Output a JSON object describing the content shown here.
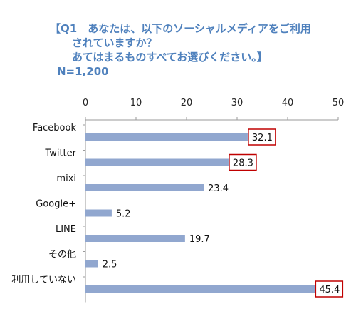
{
  "title_lines": [
    "【Q1　あなたは、以下のソーシャルメディアをご利用",
    "されていますか？",
    "あてはまるものすべてお選びください。】"
  ],
  "sample_size": "N=1,200",
  "chart_data": {
    "type": "bar",
    "orientation": "horizontal",
    "categories": [
      "Facebook",
      "Twitter",
      "mixi",
      "Google+",
      "LINE",
      "その他",
      "利用していない"
    ],
    "values": [
      32.1,
      28.3,
      23.4,
      5.2,
      19.7,
      2.5,
      45.4
    ],
    "value_labels": [
      "32.1",
      "28.3",
      "23.4",
      "5.2",
      "19.7",
      "2.5",
      "45.4"
    ],
    "highlighted": [
      true,
      true,
      false,
      false,
      false,
      false,
      true
    ],
    "xlim": [
      0,
      50
    ],
    "xticks": [
      "0",
      "10",
      "20",
      "30",
      "40",
      "50"
    ],
    "axis_position": "top",
    "grid": false,
    "title": "",
    "xlabel": "",
    "ylabel": ""
  },
  "colors": {
    "title": "#4f81bd",
    "bar": "#91a7cf",
    "highlight_box": "#c00000",
    "axis": "#9a9a9a"
  }
}
